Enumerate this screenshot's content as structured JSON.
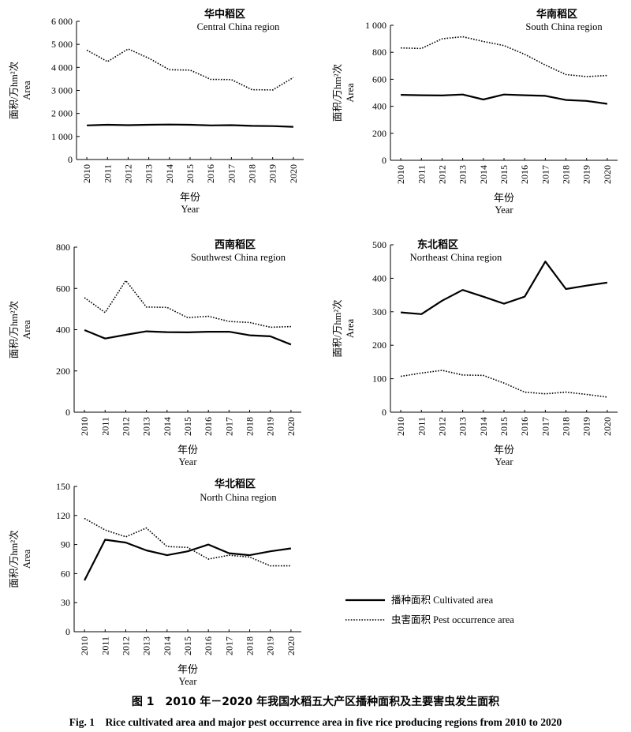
{
  "figure": {
    "caption_cn": "图 1　2010 年－2020 年我国水稻五大产区播种面积及主要害虫发生面积",
    "caption_en": "Fig. 1　Rice cultivated area and major pest occurrence area in five rice producing regions from 2010 to 2020"
  },
  "legend": {
    "cultivated": "播种面积  Cultivated area",
    "pest": "虫害面积  Pest occurrence area"
  },
  "chart_data": [
    {
      "type": "line",
      "title_cn": "华中稻区",
      "title_en": "Central China region",
      "ylabel_cn": "面积/万hm²次",
      "ylabel_en": "Area",
      "xlabel_cn": "年份",
      "xlabel_en": "Year",
      "x": [
        "2010",
        "2011",
        "2012",
        "2013",
        "2014",
        "2015",
        "2016",
        "2017",
        "2018",
        "2019",
        "2020"
      ],
      "ylim": [
        0,
        6000
      ],
      "yticks": [
        0,
        1000,
        2000,
        3000,
        4000,
        5000,
        6000
      ],
      "ytick_labels": [
        "0",
        "1 000",
        "2 000",
        "3 000",
        "4 000",
        "5 000",
        "6 000"
      ],
      "series": [
        {
          "name": "播种面积 Cultivated area",
          "style": "solid",
          "values": [
            1480,
            1510,
            1490,
            1510,
            1520,
            1510,
            1480,
            1490,
            1460,
            1450,
            1420
          ]
        },
        {
          "name": "虫害面积 Pest occurrence area",
          "style": "dotted",
          "values": [
            4750,
            4250,
            4800,
            4400,
            3900,
            3880,
            3480,
            3470,
            3030,
            3020,
            3560
          ]
        }
      ]
    },
    {
      "type": "line",
      "title_cn": "华南稻区",
      "title_en": "South China region",
      "ylabel_cn": "面积/万hm²次",
      "ylabel_en": "Area",
      "xlabel_cn": "年份",
      "xlabel_en": "Year",
      "x": [
        "2010",
        "2011",
        "2012",
        "2013",
        "2014",
        "2015",
        "2016",
        "2017",
        "2018",
        "2019",
        "2020"
      ],
      "ylim": [
        0,
        1000
      ],
      "yticks": [
        0,
        200,
        400,
        600,
        800,
        1000
      ],
      "ytick_labels": [
        "0",
        "200",
        "400",
        "600",
        "800",
        "1 000"
      ],
      "series": [
        {
          "name": "播种面积 Cultivated area",
          "style": "solid",
          "values": [
            485,
            482,
            480,
            487,
            450,
            487,
            482,
            477,
            447,
            440,
            418
          ]
        },
        {
          "name": "虫害面积 Pest occurrence area",
          "style": "dotted",
          "values": [
            832,
            828,
            900,
            915,
            880,
            850,
            785,
            705,
            635,
            620,
            628
          ]
        }
      ]
    },
    {
      "type": "line",
      "title_cn": "西南稻区",
      "title_en": "Southwest China region",
      "ylabel_cn": "面积/万hm²次",
      "ylabel_en": "Area",
      "xlabel_cn": "年份",
      "xlabel_en": "Year",
      "x": [
        "2010",
        "2011",
        "2012",
        "2013",
        "2014",
        "2015",
        "2016",
        "2017",
        "2018",
        "2019",
        "2020"
      ],
      "ylim": [
        0,
        800
      ],
      "yticks": [
        0,
        200,
        400,
        600,
        800
      ],
      "ytick_labels": [
        "0",
        "200",
        "400",
        "600",
        "800"
      ],
      "series": [
        {
          "name": "播种面积 Cultivated area",
          "style": "solid",
          "values": [
            398,
            357,
            375,
            392,
            388,
            387,
            390,
            390,
            373,
            368,
            328
          ]
        },
        {
          "name": "虫害面积 Pest occurrence area",
          "style": "dotted",
          "values": [
            555,
            483,
            638,
            510,
            508,
            458,
            465,
            440,
            435,
            412,
            415
          ]
        }
      ]
    },
    {
      "type": "line",
      "title_cn": "东北稻区",
      "title_en": "Northeast China region",
      "ylabel_cn": "面积/万hm²次",
      "ylabel_en": "Area",
      "xlabel_cn": "年份",
      "xlabel_en": "Year",
      "x": [
        "2010",
        "2011",
        "2012",
        "2013",
        "2014",
        "2015",
        "2016",
        "2017",
        "2018",
        "2019",
        "2020"
      ],
      "ylim": [
        0,
        500
      ],
      "yticks": [
        0,
        100,
        200,
        300,
        400,
        500
      ],
      "ytick_labels": [
        "0",
        "100",
        "200",
        "300",
        "400",
        "500"
      ],
      "series": [
        {
          "name": "播种面积 Cultivated area",
          "style": "solid",
          "values": [
            298,
            293,
            333,
            365,
            345,
            324,
            345,
            450,
            368,
            378,
            387
          ]
        },
        {
          "name": "虫害面积 Pest occurrence area",
          "style": "dotted",
          "values": [
            107,
            117,
            125,
            111,
            110,
            87,
            60,
            55,
            60,
            53,
            45
          ]
        }
      ]
    },
    {
      "type": "line",
      "title_cn": "华北稻区",
      "title_en": "North China region",
      "ylabel_cn": "面积/万hm²次",
      "ylabel_en": "Area",
      "xlabel_cn": "年份",
      "xlabel_en": "Year",
      "x": [
        "2010",
        "2011",
        "2012",
        "2013",
        "2014",
        "2015",
        "2016",
        "2017",
        "2018",
        "2019",
        "2020"
      ],
      "ylim": [
        0,
        150
      ],
      "yticks": [
        0,
        30,
        60,
        90,
        120,
        150
      ],
      "ytick_labels": [
        "0",
        "30",
        "60",
        "90",
        "120",
        "150"
      ],
      "series": [
        {
          "name": "播种面积 Cultivated area",
          "style": "solid",
          "values": [
            53,
            95,
            92,
            84,
            79,
            83,
            90,
            81,
            79,
            83,
            86
          ]
        },
        {
          "name": "虫害面积 Pest occurrence area",
          "style": "dotted",
          "values": [
            117,
            105,
            98,
            107,
            88,
            87,
            75,
            79,
            77,
            68,
            68
          ]
        }
      ]
    }
  ]
}
